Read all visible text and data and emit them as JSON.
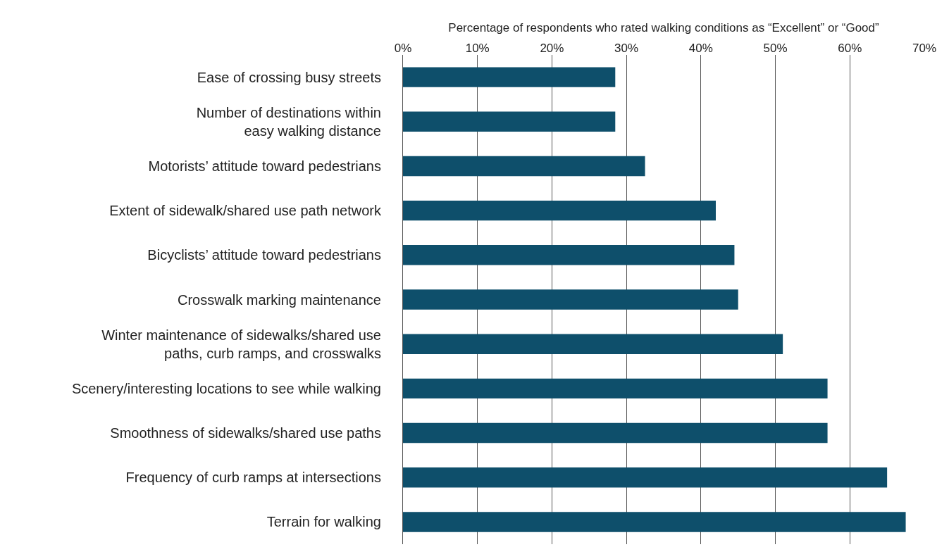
{
  "chart_data": {
    "type": "bar",
    "orientation": "horizontal",
    "xlabel": "Percentage of respondents who rated walking conditions as “Excellent” or “Good”",
    "categories": [
      "Ease of crossing busy streets",
      "Number of destinations within\neasy walking distance",
      "Motorists’ attitude toward pedestrians",
      "Extent of sidewalk/shared use path network",
      "Bicyclists’ attitude toward pedestrians",
      "Crosswalk marking maintenance",
      "Winter maintenance of sidewalks/shared use\npaths, curb ramps, and crosswalks",
      "Scenery/interesting locations to see while walking",
      "Smoothness of sidewalks/shared use paths",
      "Frequency of curb ramps at intersections",
      "Terrain for walking"
    ],
    "values": [
      28.5,
      28.5,
      32.5,
      42,
      44.5,
      45,
      51,
      57,
      57,
      65,
      67.5
    ],
    "color": "#0e4f6b",
    "xlim": [
      0,
      70
    ],
    "xticks": [
      {
        "value": 0,
        "label": "0%"
      },
      {
        "value": 10,
        "label": "10%"
      },
      {
        "value": 20,
        "label": "20%"
      },
      {
        "value": 30,
        "label": "30%"
      },
      {
        "value": 40,
        "label": "40%"
      },
      {
        "value": 50,
        "label": "50%"
      },
      {
        "value": 60,
        "label": "60%"
      },
      {
        "value": 70,
        "label": "70%"
      }
    ],
    "grid": "x"
  }
}
